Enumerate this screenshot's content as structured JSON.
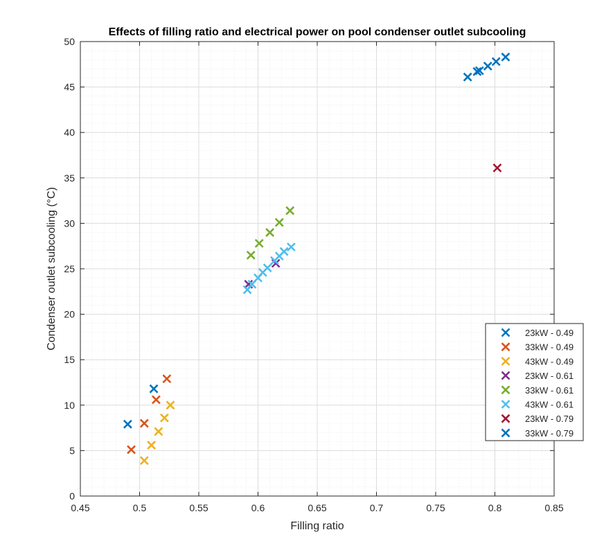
{
  "chart_data": {
    "type": "scatter",
    "title": "Effects of filling ratio and electrical power on pool condenser outlet subcooling",
    "xlabel": "Filling ratio",
    "ylabel": "Condenser outlet subcooling (°C)",
    "xlim": [
      0.45,
      0.85
    ],
    "ylim": [
      0,
      50
    ],
    "xticks": [
      "0.45",
      "0.5",
      "0.55",
      "0.6",
      "0.65",
      "0.7",
      "0.75",
      "0.8",
      "0.85"
    ],
    "yticks": [
      "0",
      "5",
      "10",
      "15",
      "20",
      "25",
      "30",
      "35",
      "40",
      "45",
      "50"
    ],
    "grid": true,
    "minor_grid": true,
    "legend_position": "right",
    "marker": "x",
    "series": [
      {
        "name": "23kW - 0.49",
        "color": "#0072BD",
        "x": [
          0.49,
          0.512
        ],
        "y": [
          7.9,
          11.8
        ]
      },
      {
        "name": "33kW - 0.49",
        "color": "#D95319",
        "x": [
          0.493,
          0.504,
          0.514,
          0.523
        ],
        "y": [
          5.1,
          8.0,
          10.6,
          12.9
        ]
      },
      {
        "name": "43kW - 0.49",
        "color": "#EDB120",
        "x": [
          0.504,
          0.51,
          0.516,
          0.521,
          0.526
        ],
        "y": [
          3.9,
          5.6,
          7.1,
          8.6,
          10.0
        ]
      },
      {
        "name": "23kW - 0.61",
        "color": "#7E2F8E",
        "x": [
          0.592,
          0.615
        ],
        "y": [
          23.3,
          25.6
        ]
      },
      {
        "name": "33kW - 0.61",
        "color": "#77AC30",
        "x": [
          0.594,
          0.601,
          0.61,
          0.618,
          0.627
        ],
        "y": [
          26.5,
          27.8,
          29.0,
          30.1,
          31.4
        ]
      },
      {
        "name": "43kW - 0.61",
        "color": "#4DBEEE",
        "x": [
          0.591,
          0.595,
          0.6,
          0.604,
          0.608,
          0.614,
          0.618,
          0.622,
          0.628
        ],
        "y": [
          22.7,
          23.3,
          24.0,
          24.6,
          25.1,
          25.9,
          26.4,
          26.9,
          27.4
        ]
      },
      {
        "name": "23kW - 0.79",
        "color": "#A2142F",
        "x": [
          0.802
        ],
        "y": [
          36.1
        ]
      },
      {
        "name": "33kW - 0.79",
        "color": "#0072BD",
        "x": [
          0.777,
          0.785,
          0.787,
          0.794,
          0.801,
          0.809
        ],
        "y": [
          46.1,
          46.7,
          46.8,
          47.3,
          47.8,
          48.3
        ]
      }
    ]
  }
}
